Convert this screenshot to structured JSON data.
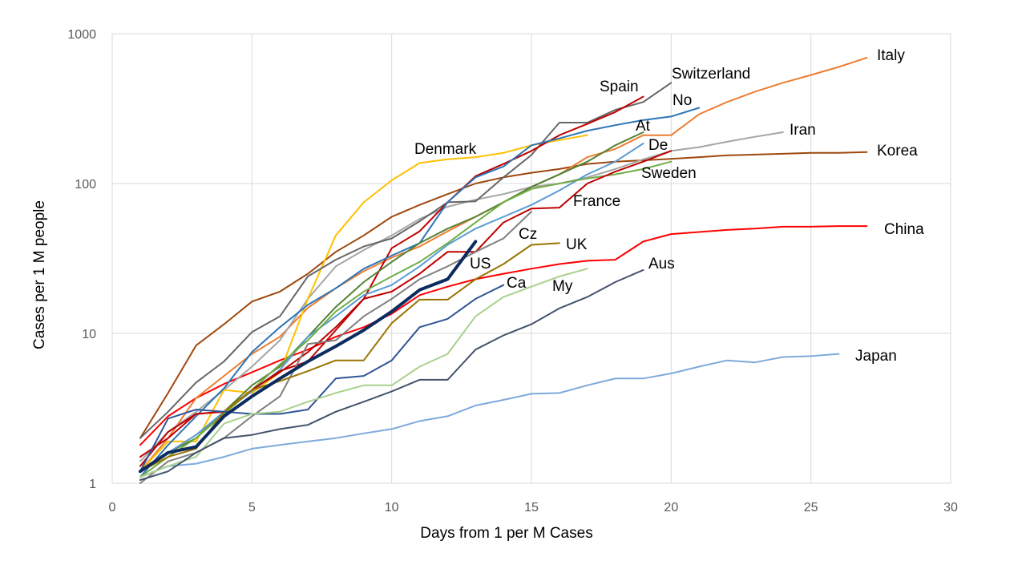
{
  "chart_data": {
    "type": "line",
    "title": "",
    "xlabel": "Days from 1 per M Cases",
    "ylabel": "Cases per 1 M people",
    "xlim": [
      0,
      30
    ],
    "ylim": [
      1,
      1000
    ],
    "yscale": "log",
    "grid": true,
    "legend": "none",
    "x_ticks": [
      0,
      5,
      10,
      15,
      20,
      25,
      30
    ],
    "y_ticks": [
      1,
      10,
      100,
      1000
    ],
    "grid_color": "#d9d9d9",
    "series": [
      {
        "name": "Japan",
        "color": "#7eaadc",
        "width": 2,
        "x": [
          1,
          2,
          3,
          4,
          5,
          6,
          7,
          8,
          9,
          10,
          11,
          12,
          13,
          14,
          15,
          16,
          17,
          18,
          19,
          20,
          21,
          22,
          23,
          24,
          25,
          26
        ],
        "y": [
          1.1,
          1.3,
          1.35,
          1.5,
          1.7,
          1.8,
          1.9,
          2.0,
          2.15,
          2.3,
          2.6,
          2.8,
          3.3,
          3.6,
          3.95,
          4.0,
          4.5,
          5.0,
          5.0,
          5.4,
          6.0,
          6.6,
          6.4,
          6.95,
          7.05,
          7.3
        ]
      },
      {
        "name": "China",
        "color": "#ff0000",
        "width": 2,
        "x": [
          1,
          2,
          3,
          4,
          5,
          6,
          7,
          8,
          9,
          10,
          11,
          12,
          13,
          14,
          15,
          16,
          17,
          18,
          19,
          20,
          21,
          22,
          23,
          24,
          25,
          26,
          27
        ],
        "y": [
          1.8,
          2.8,
          3.7,
          4.6,
          5.5,
          6.6,
          7.8,
          9.5,
          11.0,
          13.5,
          18.0,
          20.5,
          23.0,
          25.0,
          27.0,
          29.0,
          30.5,
          31.0,
          41.0,
          46.0,
          47.5,
          49.0,
          50.0,
          51.5,
          51.5,
          52.0,
          52.0
        ]
      },
      {
        "name": "Korea",
        "color": "#9e480e",
        "width": 2,
        "x": [
          1,
          2,
          3,
          4,
          5,
          6,
          7,
          8,
          9,
          10,
          11,
          12,
          13,
          14,
          15,
          16,
          17,
          18,
          19,
          20,
          21,
          22,
          23,
          24,
          25,
          26,
          27
        ],
        "y": [
          2.0,
          4.0,
          8.3,
          11.5,
          16.3,
          19.0,
          25.0,
          35.0,
          45.0,
          60.0,
          72.0,
          85.0,
          100.0,
          110.0,
          118.0,
          125.0,
          135.0,
          140.0,
          143.0,
          146.0,
          150.0,
          154.0,
          156.0,
          158.0,
          160.0,
          160.0,
          162.0
        ]
      },
      {
        "name": "Italy",
        "color": "#ed7d31",
        "width": 2,
        "x": [
          1,
          2,
          3,
          4,
          5,
          6,
          7,
          8,
          9,
          10,
          11,
          12,
          13,
          14,
          15,
          16,
          17,
          18,
          19,
          20,
          21,
          22,
          23,
          24,
          25,
          26,
          27
        ],
        "y": [
          1.2,
          2.0,
          3.7,
          5.2,
          7.3,
          9.5,
          14.8,
          20.0,
          26.0,
          32.0,
          38.0,
          48.0,
          60.0,
          75.0,
          95.0,
          115.0,
          150.0,
          170.0,
          210.0,
          210.0,
          290.0,
          350.0,
          410.0,
          470.0,
          530.0,
          600.0,
          690.0
        ]
      },
      {
        "name": "Iran",
        "color": "#a5a5a5",
        "width": 2,
        "x": [
          1,
          2,
          3,
          4,
          5,
          6,
          7,
          8,
          9,
          10,
          11,
          12,
          13,
          14,
          15,
          16,
          17,
          18,
          19,
          20,
          21,
          22,
          23,
          24
        ],
        "y": [
          1.4,
          2.2,
          3.0,
          4.2,
          6.0,
          9.0,
          17.0,
          28.0,
          36.0,
          45.0,
          58.0,
          70.0,
          78.0,
          85.0,
          95.0,
          100.0,
          110.0,
          125.0,
          145.0,
          165.0,
          175.0,
          190.0,
          205.0,
          220.0
        ]
      },
      {
        "name": "Denmark",
        "color": "#ffc000",
        "width": 2,
        "x": [
          1,
          2,
          3,
          4,
          5,
          6,
          7,
          8,
          9,
          10,
          11,
          12,
          13,
          14,
          15,
          16,
          17
        ],
        "y": [
          1.2,
          1.9,
          1.9,
          4.2,
          4.0,
          5.5,
          17.0,
          45.0,
          75.0,
          105.0,
          137.0,
          145.0,
          150.0,
          160.0,
          180.0,
          195.0,
          210.0
        ]
      },
      {
        "name": "Switzerland",
        "color": "#666666",
        "width": 2,
        "x": [
          1,
          2,
          3,
          4,
          5,
          6,
          7,
          8,
          9,
          10,
          11,
          12,
          13,
          14,
          15,
          16,
          17,
          18,
          19,
          20
        ],
        "y": [
          2.0,
          3.0,
          4.7,
          6.5,
          10.2,
          13.0,
          24.0,
          31.0,
          38.0,
          43.0,
          56.0,
          75.0,
          76.0,
          110.0,
          155.0,
          255.0,
          255.0,
          310.0,
          350.0,
          470.0
        ]
      },
      {
        "name": "Spain",
        "color": "#c00000",
        "width": 2,
        "x": [
          1,
          2,
          3,
          4,
          5,
          6,
          7,
          8,
          9,
          10,
          11,
          12,
          13,
          14,
          15,
          16,
          17,
          18,
          19
        ],
        "y": [
          1.3,
          2.2,
          2.9,
          3.0,
          4.2,
          5.5,
          7.5,
          11.0,
          17.0,
          37.0,
          48.0,
          75.0,
          112.0,
          135.0,
          165.0,
          210.0,
          250.0,
          300.0,
          380.0
        ]
      },
      {
        "name": "No",
        "color": "#2e75b6",
        "width": 2,
        "x": [
          1,
          2,
          3,
          4,
          5,
          6,
          7,
          8,
          9,
          10,
          11,
          12,
          13,
          14,
          15,
          16,
          17,
          18,
          19,
          20,
          21
        ],
        "y": [
          1.1,
          1.8,
          2.8,
          4.3,
          7.5,
          11.0,
          15.5,
          20.0,
          27.0,
          33.0,
          40.0,
          75.0,
          110.0,
          130.0,
          180.0,
          200.0,
          225.0,
          245.0,
          265.0,
          280.0,
          320.0
        ]
      },
      {
        "name": "At",
        "color": "#548235",
        "width": 2,
        "x": [
          1,
          2,
          3,
          4,
          5,
          6,
          7,
          8,
          9,
          10,
          11,
          12,
          13,
          14,
          15,
          16,
          17,
          18,
          19
        ],
        "y": [
          1.2,
          1.6,
          2.0,
          3.0,
          4.5,
          6.0,
          9.5,
          15.0,
          22.0,
          30.0,
          40.0,
          50.0,
          60.0,
          75.0,
          95.0,
          115.0,
          140.0,
          180.0,
          220.0
        ]
      },
      {
        "name": "De",
        "color": "#5b9bd5",
        "width": 2,
        "x": [
          1,
          2,
          3,
          4,
          5,
          6,
          7,
          8,
          9,
          10,
          11,
          12,
          13,
          14,
          15,
          16,
          17,
          18,
          19
        ],
        "y": [
          1.2,
          1.6,
          2.1,
          3.0,
          4.1,
          5.7,
          9.5,
          13.0,
          18.0,
          21.0,
          28.0,
          39.0,
          50.0,
          60.0,
          72.0,
          90.0,
          115.0,
          140.0,
          185.0
        ]
      },
      {
        "name": "Sweden",
        "color": "#70ad47",
        "width": 2,
        "x": [
          1,
          2,
          3,
          4,
          5,
          6,
          7,
          8,
          9,
          10,
          11,
          12,
          13,
          14,
          15,
          16,
          17,
          18,
          19,
          20
        ],
        "y": [
          1.1,
          1.5,
          2.0,
          2.9,
          4.2,
          6.2,
          9.0,
          14.0,
          19.0,
          24.0,
          30.0,
          40.0,
          55.0,
          75.0,
          92.0,
          100.0,
          108.0,
          115.0,
          125.0,
          140.0
        ]
      },
      {
        "name": "France",
        "color": "#c00000",
        "width": 2,
        "x": [
          1,
          2,
          3,
          4,
          5,
          6,
          7,
          8,
          9,
          10,
          11,
          12,
          13,
          14,
          15,
          16,
          17,
          18,
          19,
          20
        ],
        "y": [
          1.5,
          2.0,
          2.9,
          3.0,
          4.2,
          5.6,
          6.5,
          10.5,
          17.0,
          19.0,
          25.0,
          35.0,
          35.0,
          55.0,
          68.0,
          69.0,
          100.0,
          120.0,
          140.0,
          165.0
        ]
      },
      {
        "name": "Cz",
        "color": "#7f7f7f",
        "width": 2,
        "x": [
          1,
          2,
          3,
          4,
          5,
          6,
          7,
          8,
          9,
          10,
          11,
          12,
          13,
          14,
          15
        ],
        "y": [
          1.0,
          1.4,
          1.6,
          2.0,
          2.8,
          3.8,
          8.5,
          9.0,
          13.0,
          17.0,
          23.0,
          28.0,
          35.0,
          43.0,
          65.0
        ]
      },
      {
        "name": "UK",
        "color": "#997300",
        "width": 2,
        "x": [
          1,
          2,
          3,
          4,
          5,
          6,
          7,
          8,
          9,
          10,
          11,
          12,
          13,
          14,
          15,
          16
        ],
        "y": [
          1.2,
          1.5,
          1.7,
          3.0,
          4.2,
          4.8,
          5.6,
          6.6,
          6.6,
          11.7,
          16.8,
          16.8,
          23.0,
          29.0,
          39.0,
          40.0
        ]
      },
      {
        "name": "US",
        "color": "#0d2b5e",
        "width": 4,
        "x": [
          1,
          2,
          3,
          4,
          5,
          6,
          7,
          8,
          9,
          10,
          11,
          12,
          13
        ],
        "y": [
          1.2,
          1.6,
          1.75,
          2.8,
          3.8,
          5.0,
          6.5,
          8.2,
          10.5,
          14.0,
          19.5,
          23.0,
          41.0
        ]
      },
      {
        "name": "Ca",
        "color": "#2f5597",
        "width": 2,
        "x": [
          1,
          2,
          3,
          4,
          5,
          6,
          7,
          8,
          9,
          10,
          11,
          12,
          13,
          14
        ],
        "y": [
          1.2,
          2.7,
          3.1,
          3.0,
          2.9,
          2.9,
          3.1,
          5.0,
          5.2,
          6.6,
          11.0,
          12.5,
          17.0,
          21.0
        ]
      },
      {
        "name": "My",
        "color": "#a9d18e",
        "width": 2,
        "x": [
          1,
          2,
          3,
          4,
          5,
          6,
          7,
          8,
          9,
          10,
          11,
          12,
          13,
          14,
          15,
          16,
          17
        ],
        "y": [
          1.1,
          1.3,
          1.5,
          2.5,
          2.9,
          3.0,
          3.5,
          4.0,
          4.5,
          4.5,
          6.0,
          7.3,
          13.0,
          17.5,
          20.5,
          24.0,
          27.0
        ]
      },
      {
        "name": "Aus",
        "color": "#44546a",
        "width": 2,
        "x": [
          1,
          2,
          3,
          4,
          5,
          6,
          7,
          8,
          9,
          10,
          11,
          12,
          13,
          14,
          15,
          16,
          17,
          18,
          19
        ],
        "y": [
          1.05,
          1.2,
          1.6,
          2.0,
          2.1,
          2.3,
          2.45,
          3.0,
          3.5,
          4.1,
          4.9,
          4.9,
          7.8,
          9.7,
          11.5,
          14.7,
          17.5,
          22.0,
          26.5
        ]
      }
    ],
    "annotations": [
      {
        "text": "Italy",
        "series": "Italy"
      },
      {
        "text": "Switzerland",
        "series": "Switzerland"
      },
      {
        "text": "Spain",
        "series": "Spain"
      },
      {
        "text": "No",
        "series": "No"
      },
      {
        "text": "At",
        "series": "At"
      },
      {
        "text": "Iran",
        "series": "Iran"
      },
      {
        "text": "Denmark",
        "series": "Denmark"
      },
      {
        "text": "De",
        "series": "De"
      },
      {
        "text": "Korea",
        "series": "Korea"
      },
      {
        "text": "Sweden",
        "series": "Sweden"
      },
      {
        "text": "France",
        "series": "France"
      },
      {
        "text": "China",
        "series": "China"
      },
      {
        "text": "Cz",
        "series": "Cz"
      },
      {
        "text": "UK",
        "series": "UK"
      },
      {
        "text": "US",
        "series": "US"
      },
      {
        "text": "Aus",
        "series": "Aus"
      },
      {
        "text": "Ca",
        "series": "Ca"
      },
      {
        "text": "My",
        "series": "My"
      },
      {
        "text": "Japan",
        "series": "Japan"
      }
    ]
  }
}
